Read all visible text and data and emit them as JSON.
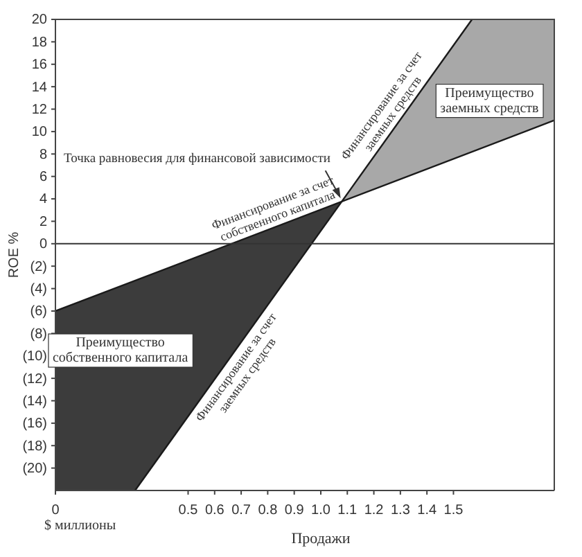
{
  "chart_data": {
    "type": "line",
    "xlabel": "Продажи",
    "ylabel": "ROE %",
    "xlim": [
      0,
      1.88
    ],
    "ylim": [
      -22,
      20
    ],
    "xticks": [
      0,
      0.5,
      0.6,
      0.7,
      0.8,
      0.9,
      {
        "value": 1,
        "label": "1.0"
      },
      1.1,
      1.2,
      1.3,
      1.4,
      1.5
    ],
    "yticks": [
      20,
      18,
      16,
      14,
      12,
      10,
      8,
      6,
      4,
      2,
      0,
      {
        "value": -2,
        "label": "(2)"
      },
      {
        "value": -4,
        "label": "(4)"
      },
      {
        "value": -6,
        "label": "(6)"
      },
      {
        "value": -8,
        "label": "(8)"
      },
      {
        "value": -10,
        "label": "(10)"
      },
      {
        "value": -12,
        "label": "(12)"
      },
      {
        "value": -14,
        "label": "(14)"
      },
      {
        "value": -16,
        "label": "(16)"
      },
      {
        "value": -18,
        "label": "(18)"
      },
      {
        "value": -20,
        "label": "(20)"
      }
    ],
    "series": [
      {
        "color": "#3c3c3c",
        "x": [
          0,
          0.3,
          1.08
        ],
        "values": [
          null,
          null,
          null
        ],
        "upper": [
          -6,
          -3.3,
          3.8
        ],
        "lower": [
          -22,
          -22,
          3.8
        ]
      },
      {
        "color": "#a8a8a8",
        "x": [
          1.08,
          1.57,
          1.88
        ],
        "values": [
          null,
          null,
          null
        ],
        "upper": [
          3.8,
          20,
          20
        ],
        "lower": [
          3.8,
          8.2,
          11
        ]
      },
      {
        "color": "#1a1a1a",
        "x": [
          0,
          1.88
        ],
        "values": [
          -6,
          11
        ]
      },
      {
        "color": "#1a1a1a",
        "x": [
          0.3,
          1.57
        ],
        "values": [
          -22,
          20
        ]
      }
    ],
    "ref_lines": [
      {
        "axis": "y",
        "value": 0,
        "color": "#333333"
      }
    ],
    "annotations": [
      {
        "text": "Точка равновесия для финансовой зависимости",
        "x": 1.08,
        "y": 3.8
      },
      {
        "text": "Финансирование за счет\nсобственного капитала",
        "x": 0.85,
        "y": 1.7
      },
      {
        "text": "Финансирование за счет\nзаемных средств",
        "x": 1.3,
        "y": 11.1
      },
      {
        "text": "Финансирование за счет\nзаемных средств",
        "x": 0.65,
        "y": -10.5
      },
      "Преимущество\nзаемных средств",
      "Преимущество\nсобственного капитала",
      "$ миллионы"
    ],
    "grid": false
  }
}
